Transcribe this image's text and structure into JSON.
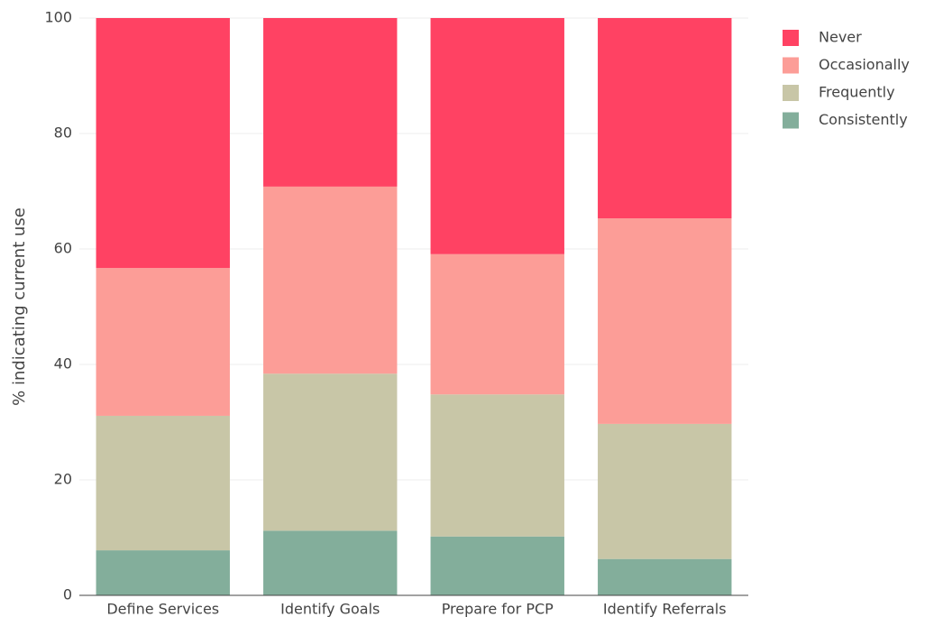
{
  "chart_data": {
    "type": "stacked_bar",
    "y_label": "% indicating current use",
    "categories": [
      "Define Services",
      "Identify Goals",
      "Prepare for PCP",
      "Identify Referrals"
    ],
    "series": [
      {
        "name": "Consistently",
        "color": "#83ae9b",
        "values": [
          7.8,
          11.2,
          10.2,
          6.3
        ]
      },
      {
        "name": "Frequently",
        "color": "#c8c6a7",
        "values": [
          23.3,
          27.2,
          24.6,
          23.4
        ]
      },
      {
        "name": "Occasionally",
        "color": "#fc9d97",
        "values": [
          25.6,
          32.4,
          24.3,
          35.6
        ]
      },
      {
        "name": "Never",
        "color": "#ff4263",
        "values": [
          43.3,
          29.2,
          40.9,
          34.7
        ]
      }
    ],
    "ylim": [
      0,
      100
    ],
    "yticks": [
      0,
      20,
      40,
      60,
      80,
      100
    ],
    "grid": true,
    "legend": "right"
  }
}
